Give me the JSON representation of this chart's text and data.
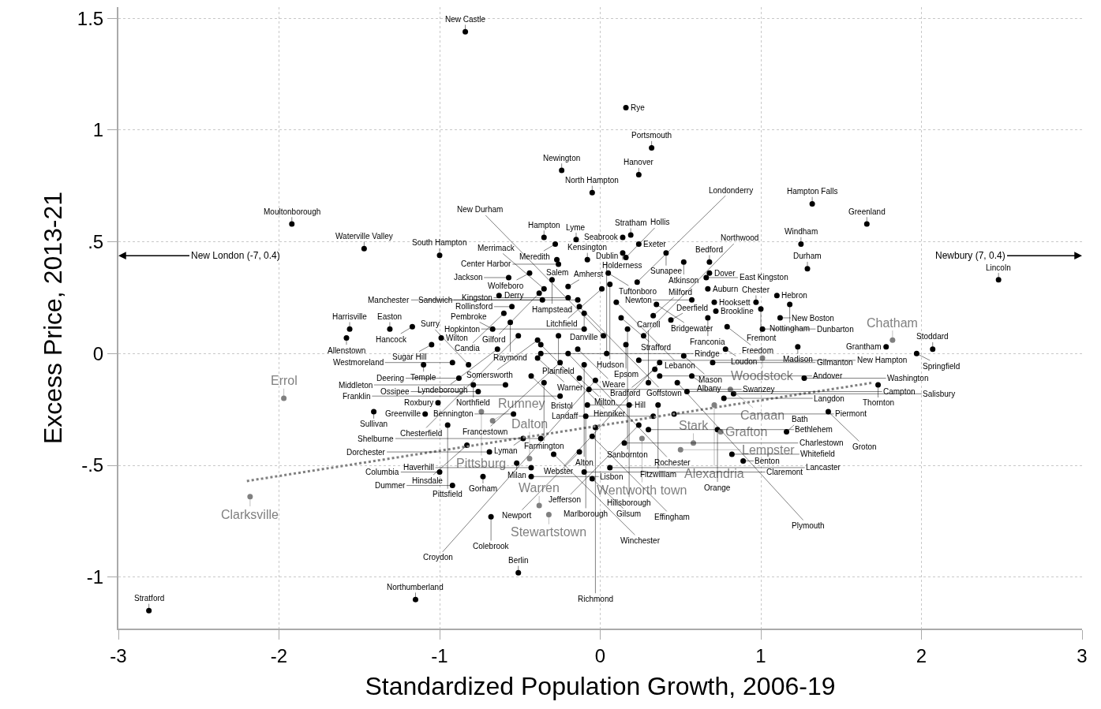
{
  "chart_data": {
    "type": "scatter",
    "xlabel": "Standardized Population Growth, 2006-19",
    "ylabel": "Excess Price, 2013-21",
    "xlim": [
      -3,
      3
    ],
    "xticks": [
      -3,
      -2,
      -1,
      0,
      1,
      2,
      3
    ],
    "ylim": [
      -1.23,
      1.55
    ],
    "yticks": [
      {
        "value": -1,
        "label": "-1"
      },
      {
        "value": -0.5,
        "label": "-.5"
      },
      {
        "value": 0,
        "label": "0"
      },
      {
        "value": 0.5,
        "label": ".5"
      },
      {
        "value": 1,
        "label": "1"
      },
      {
        "value": 1.5,
        "label": "1.5"
      }
    ],
    "grid": true,
    "annotations": [
      "New London (-7, 0.4)",
      "Newbury (7, 0.4)"
    ],
    "series": [
      {
        "color": "#000000",
        "marker": "circle",
        "x": [
          -2.81,
          -1.15,
          -0.51,
          -0.84,
          0.16,
          0.32,
          -0.24,
          0.24,
          -0.05,
          1.32,
          1.66,
          -1.92,
          1.25,
          -1.47,
          -1.0,
          1.29,
          2.48,
          -0.35,
          -0.28,
          -0.15,
          0.19,
          0.14,
          0.24,
          0.14,
          0.41,
          -0.27,
          -0.08,
          0.16,
          -0.26,
          0.52,
          0.68,
          0.05,
          0.68,
          -0.44,
          -0.57,
          0.66,
          -0.3,
          0.06,
          0.23,
          0.67,
          0.01,
          -0.35,
          -0.2,
          -0.63,
          -0.38,
          -0.2,
          -0.36,
          -0.14,
          0.1,
          0.35,
          0.57,
          0.71,
          0.97,
          1.1,
          1.18,
          -0.55,
          -0.13,
          1.0,
          0.72,
          -0.6,
          -0.1,
          0.67,
          0.33,
          0.13,
          1.12,
          -0.56,
          0.44,
          -0.1,
          0.17,
          0.79,
          1.01,
          -0.67,
          -1.56,
          -1.31,
          -1.17,
          -1.58,
          -0.99,
          -1.05,
          -0.51,
          -0.26,
          0.02,
          0.27,
          -0.39,
          -0.64,
          -0.37,
          -0.14,
          0.16,
          1.23,
          0.78,
          -0.37,
          -0.2,
          0.04,
          0.52,
          -0.39,
          -1.1,
          -0.92,
          -0.82,
          -0.25,
          -0.1,
          0.37,
          0.7,
          0.24,
          0.34,
          0.37,
          0.57,
          0.3,
          0.48,
          -0.88,
          -0.43,
          -0.79,
          -0.59,
          -0.35,
          -0.13,
          -0.03,
          -0.07,
          -0.76,
          0.54,
          0.83,
          0.77,
          -0.25,
          -1.01,
          -1.41,
          -1.09,
          -0.08,
          0.18,
          0.36,
          -0.54,
          -0.09,
          0.33,
          0.46,
          -0.95,
          -0.03,
          0.24,
          0.3,
          -0.48,
          -0.37,
          -0.05,
          0.15,
          0.73,
          -0.83,
          -0.69,
          -0.29,
          -0.13,
          0.82,
          0.89,
          1.16,
          1.42,
          1.27,
          -0.52,
          -0.43,
          -0.43,
          -1.0,
          -0.73,
          -0.1,
          -0.05,
          0.06,
          -0.92,
          -0.68,
          1.73,
          1.78,
          2.07,
          1.97
        ],
        "values": [
          -1.15,
          -1.1,
          -0.98,
          1.44,
          1.1,
          0.92,
          0.82,
          0.8,
          0.72,
          0.67,
          0.58,
          0.58,
          0.49,
          0.47,
          0.44,
          0.38,
          0.33,
          0.52,
          0.49,
          0.51,
          0.53,
          0.52,
          0.49,
          0.45,
          0.45,
          0.42,
          0.42,
          0.43,
          0.4,
          0.41,
          0.41,
          0.36,
          0.36,
          0.36,
          0.34,
          0.34,
          0.33,
          0.31,
          0.32,
          0.29,
          0.29,
          0.29,
          0.3,
          0.26,
          0.27,
          0.25,
          0.24,
          0.24,
          0.23,
          0.22,
          0.24,
          0.23,
          0.23,
          0.26,
          0.22,
          0.21,
          0.21,
          0.2,
          0.19,
          0.18,
          0.18,
          0.16,
          0.17,
          0.16,
          0.16,
          0.14,
          0.15,
          0.11,
          0.11,
          0.12,
          0.11,
          0.11,
          0.11,
          0.11,
          0.12,
          0.07,
          0.07,
          0.04,
          0.08,
          0.08,
          0.08,
          0.08,
          0.06,
          0.02,
          0.04,
          0.02,
          0.04,
          0.03,
          0.02,
          0.0,
          0.0,
          0.0,
          -0.01,
          -0.02,
          -0.05,
          -0.04,
          -0.05,
          -0.04,
          -0.05,
          -0.04,
          -0.04,
          -0.03,
          -0.07,
          -0.1,
          -0.1,
          -0.13,
          -0.13,
          -0.11,
          -0.1,
          -0.14,
          -0.14,
          -0.13,
          -0.11,
          -0.12,
          -0.16,
          -0.17,
          -0.17,
          -0.18,
          -0.2,
          -0.19,
          -0.22,
          -0.26,
          -0.27,
          -0.23,
          -0.23,
          -0.23,
          -0.27,
          -0.28,
          -0.28,
          -0.27,
          -0.32,
          -0.33,
          -0.32,
          -0.34,
          -0.38,
          -0.38,
          -0.37,
          -0.4,
          -0.34,
          -0.41,
          -0.44,
          -0.45,
          -0.44,
          -0.45,
          -0.48,
          -0.35,
          -0.26,
          -0.11,
          -0.49,
          -0.51,
          -0.55,
          -0.53,
          -0.55,
          -0.53,
          -0.56,
          -0.51,
          -0.59,
          -0.73,
          -0.14,
          0.03,
          0.02,
          0.0
        ],
        "value_labels": [
          "Stratford",
          "Northumberland",
          "Berlin",
          "New Castle",
          "Rye",
          "Portsmouth",
          "Newington",
          "Hanover",
          "North Hampton",
          "Hampton Falls",
          "Greenland",
          "Moultonborough",
          "Windham",
          "Waterville Valley",
          "South Hampton",
          "Durham",
          "Lincoln",
          "Hampton",
          "Meredith",
          "Lyme",
          "Stratham",
          "Seabrook",
          "Exeter",
          "Holderness",
          "Sunapee",
          "Salem",
          "Kensington",
          "Hollis",
          "Center Harbor",
          "Atkinson",
          "Bedford",
          "Tuftonboro",
          "Dover",
          "Wolfeboro",
          "Jackson",
          "East Kingston",
          "Hampstead",
          "Hudson",
          "Londonderry",
          "Auburn",
          "Litchfield",
          "Merrimack",
          "Amherst",
          "Derry",
          "Gilford",
          "Kingston",
          "Sandwich",
          "Manchester",
          "Lebanon",
          "Bridgewater",
          "Newton",
          "Hooksett",
          "Chester",
          "Hebron",
          "Nottingham",
          "Rollinsford",
          "Goffstown",
          "Fremont",
          "Brookline",
          "Candia",
          "Danville",
          "Franconia",
          "Milford",
          "Strafford",
          "New Boston",
          "Raymond",
          "Deerfield",
          "Hopkinton",
          "Sanbornton",
          "Freedom",
          "Dunbarton",
          "Pembroke",
          "Harrisville",
          "Easton",
          "Hancock",
          "Allenstown",
          "Wilton",
          "Sugar Hill",
          "Chesterfield",
          "Plainfield",
          "New Durham",
          "Northwood",
          "Somersworth",
          "Lyndeborough",
          "Henniker",
          "Weare",
          "Epsom",
          "Madison",
          "Loudon",
          "Rindge",
          "Rochester",
          "Dublin",
          "Mason",
          "Warner",
          "Temple",
          "Westmoreland",
          "Surry",
          "Francestown",
          "Alton",
          "Webster",
          "Gilmanton",
          "New Hampton",
          "Bradford",
          "Andover",
          "Albany",
          "Carroll",
          "Plymouth",
          "Deering",
          "Bristol",
          "Northfield",
          "Middleton",
          "Farmington",
          "Milton",
          "Croydon",
          "Swanzey",
          "Ossipee",
          "Campton",
          "Salisbury",
          "Langdon",
          "Franklin",
          "Roxbury",
          "Sullivan",
          "Greenville",
          "Hill",
          "Hillsborough",
          "Fitzwilliam",
          "Bennington",
          "Marlborough",
          "Landaff",
          "Piermont",
          "Pittsfield",
          "Richmond",
          "Jefferson",
          "Bethlehem",
          "Lyman",
          "Shelburne",
          "Effingham",
          "Charlestown",
          "Orange",
          "Hinsdale",
          "Dorchester",
          "Winchester",
          "Newport",
          "Whitefield",
          "Benton",
          "Bath",
          "Groton",
          "Washington",
          "Milan",
          "Haverhill",
          "Lisbon",
          "Columbia",
          "Gorham",
          "Claremont",
          "Gilsum",
          "Lancaster",
          "Dummer",
          "Colebrook",
          "Thornton",
          "Grantham",
          "Stoddard",
          "Springfield"
        ]
      },
      {
        "color": "#808080",
        "marker": "circle",
        "x": [
          -1.97,
          -2.18,
          1.82,
          1.01,
          0.81,
          0.71,
          -0.74,
          -0.67,
          0.26,
          0.75,
          0.58,
          0.5,
          -0.44,
          -0.38,
          -0.32
        ],
        "values": [
          -0.2,
          -0.64,
          0.06,
          -0.02,
          -0.16,
          -0.23,
          -0.26,
          -0.3,
          -0.38,
          -0.35,
          -0.4,
          -0.43,
          -0.47,
          -0.68,
          -0.72
        ],
        "value_labels": [
          "Errol",
          "Clarksville",
          "Chatham",
          "Woodstock",
          "Canaan",
          "Alexandria",
          "Pittsburg",
          "Rumney",
          "Wentworth town",
          "Grafton",
          "Stark",
          "Lempster",
          "Dalton",
          "Warren",
          "Stewartstown"
        ]
      },
      {
        "type": "line",
        "color": "#808080",
        "line_style": "dotted",
        "x": [
          -2.2,
          1.7
        ],
        "values": [
          -0.57,
          -0.13
        ]
      }
    ]
  }
}
